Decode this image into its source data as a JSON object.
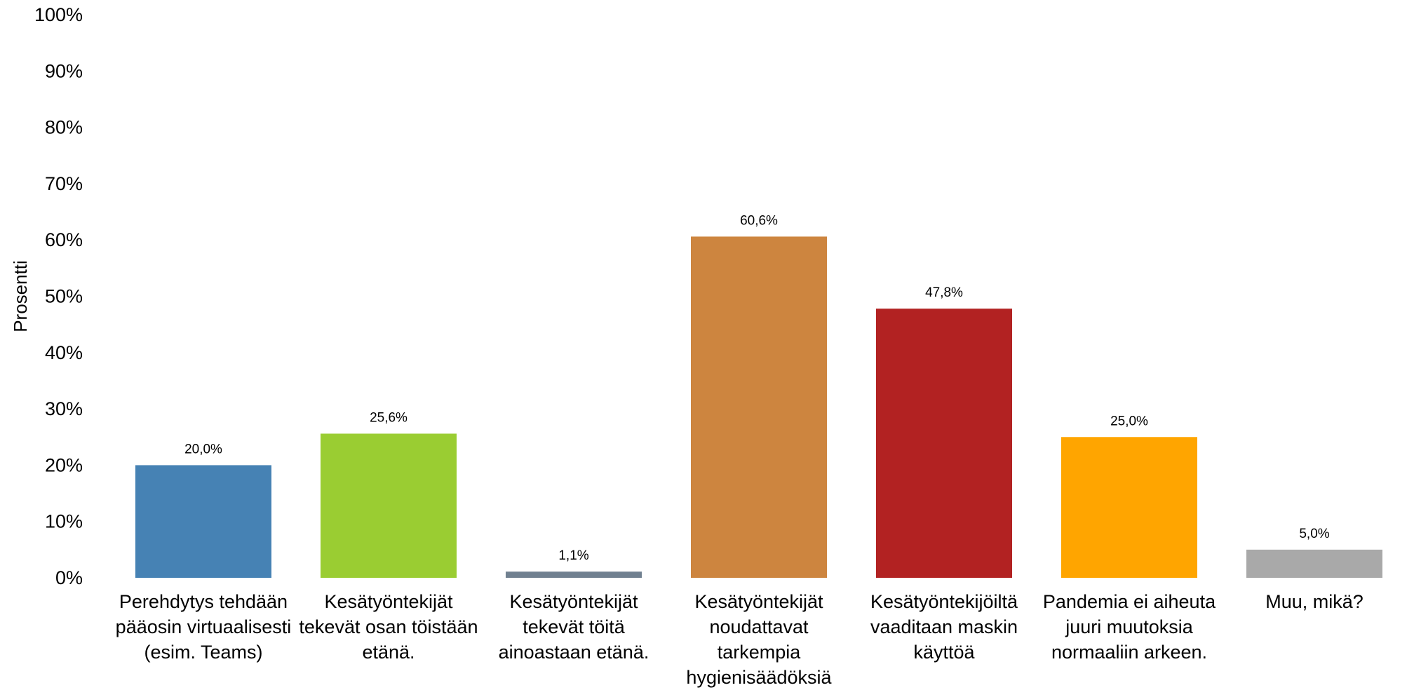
{
  "chart_data": {
    "type": "bar",
    "title": "",
    "xlabel": "",
    "ylabel": "Prosentti",
    "ylim": [
      0,
      100
    ],
    "yticks": [
      "0%",
      "10%",
      "20%",
      "30%",
      "40%",
      "50%",
      "60%",
      "70%",
      "80%",
      "90%",
      "100%"
    ],
    "grid": false,
    "legend": "none",
    "categories": [
      "Perehdytys tehdään\npääosin virtuaalisesti\n(esim. Teams)",
      "Kesätyöntekijät\ntekevät osan töistään\netänä.",
      "Kesätyöntekijät\ntekevät töitä\nainoastaan etänä.",
      "Kesätyöntekijät\nnoudattavat\ntarkempia\nhygienisäädöksiä",
      "Kesätyöntekijöiltä\nvaaditaan maskin\nkäyttöä",
      "Pandemia ei aiheuta\njuuri muutoksia\nnormaaliin arkeen.",
      "Muu, mikä?"
    ],
    "values": [
      20.0,
      25.6,
      1.1,
      60.6,
      47.8,
      25.0,
      5.0
    ],
    "data_labels": [
      "20,0%",
      "25,6%",
      "1,1%",
      "60,6%",
      "47,8%",
      "25,0%",
      "5,0%"
    ],
    "colors": [
      "#4682B4",
      "#9ACD32",
      "#708090",
      "#CD853F",
      "#B22222",
      "#FFA500",
      "#A9A9A9"
    ]
  }
}
